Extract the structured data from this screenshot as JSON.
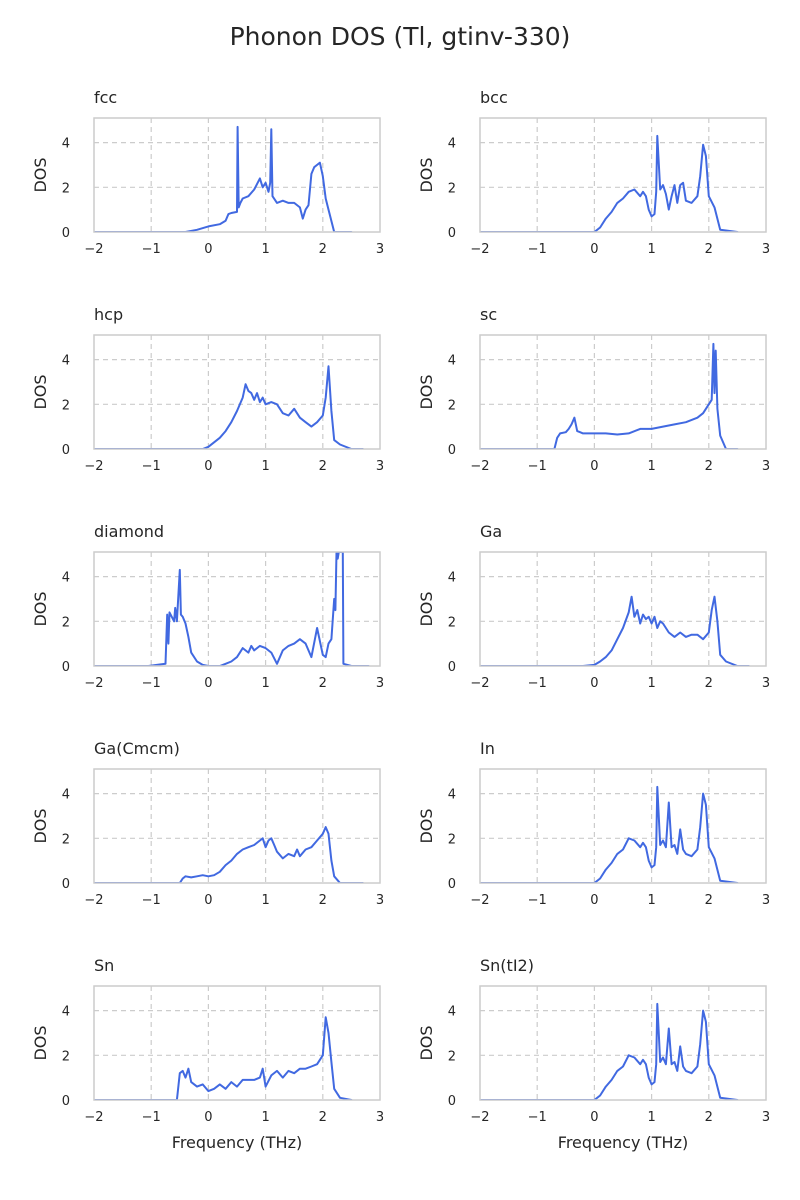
{
  "figure": {
    "title": "Phonon DOS (Tl, gtinv-330)"
  },
  "style": {
    "line_color": "#4169e1",
    "grid_color": "#cccccc",
    "frame_color": "#cccccc",
    "text_color": "#262626"
  },
  "chart_data": [
    {
      "type": "line",
      "title": "fcc",
      "xlabel": "",
      "ylabel": "DOS",
      "xlim": [
        -2,
        3
      ],
      "ylim": [
        0,
        5.1
      ],
      "xticks": [
        "−2",
        "−1",
        "0",
        "1",
        "2",
        "3"
      ],
      "yticks": [
        "0",
        "2",
        "4"
      ],
      "grid": true,
      "x": [
        -2,
        -0.4,
        -0.2,
        0,
        0.2,
        0.3,
        0.35,
        0.4,
        0.5,
        0.51,
        0.53,
        0.56,
        0.6,
        0.7,
        0.8,
        0.9,
        0.95,
        1.0,
        1.05,
        1.08,
        1.1,
        1.12,
        1.2,
        1.3,
        1.4,
        1.5,
        1.6,
        1.65,
        1.7,
        1.75,
        1.8,
        1.85,
        1.9,
        1.95,
        2.0,
        2.05,
        2.1,
        2.2,
        2.5
      ],
      "y": [
        0,
        0,
        0.1,
        0.25,
        0.35,
        0.5,
        0.8,
        0.85,
        0.9,
        4.7,
        1.1,
        1.3,
        1.5,
        1.6,
        1.9,
        2.4,
        2.0,
        2.2,
        1.8,
        2.2,
        4.6,
        1.6,
        1.3,
        1.4,
        1.3,
        1.3,
        1.1,
        0.6,
        1.0,
        1.2,
        2.6,
        2.9,
        3.0,
        3.1,
        2.5,
        1.5,
        1.0,
        0,
        0
      ]
    },
    {
      "type": "line",
      "title": "bcc",
      "xlabel": "",
      "ylabel": "DOS",
      "xlim": [
        -2,
        3
      ],
      "ylim": [
        0,
        5.1
      ],
      "xticks": [
        "−2",
        "−1",
        "0",
        "1",
        "2",
        "3"
      ],
      "yticks": [
        "0",
        "2",
        "4"
      ],
      "grid": true,
      "x": [
        -2,
        0,
        0.1,
        0.2,
        0.3,
        0.4,
        0.5,
        0.6,
        0.7,
        0.8,
        0.85,
        0.9,
        0.95,
        1.0,
        1.05,
        1.08,
        1.1,
        1.15,
        1.2,
        1.25,
        1.3,
        1.35,
        1.4,
        1.45,
        1.5,
        1.55,
        1.6,
        1.7,
        1.8,
        1.85,
        1.9,
        1.95,
        2.0,
        2.1,
        2.2,
        2.5
      ],
      "y": [
        0,
        0,
        0.2,
        0.6,
        0.9,
        1.3,
        1.5,
        1.8,
        1.9,
        1.6,
        1.8,
        1.6,
        1.0,
        0.7,
        0.8,
        1.8,
        4.3,
        1.9,
        2.1,
        1.7,
        1.0,
        1.6,
        2.1,
        1.3,
        2.1,
        2.2,
        1.4,
        1.3,
        1.6,
        2.5,
        3.9,
        3.4,
        1.6,
        1.1,
        0.1,
        0
      ]
    },
    {
      "type": "line",
      "title": "hcp",
      "xlabel": "",
      "ylabel": "DOS",
      "xlim": [
        -2,
        3
      ],
      "ylim": [
        0,
        5.1
      ],
      "xticks": [
        "−2",
        "−1",
        "0",
        "1",
        "2",
        "3"
      ],
      "yticks": [
        "0",
        "2",
        "4"
      ],
      "grid": true,
      "x": [
        -2,
        -0.1,
        0,
        0.1,
        0.2,
        0.3,
        0.4,
        0.5,
        0.6,
        0.65,
        0.7,
        0.75,
        0.8,
        0.85,
        0.9,
        0.95,
        1.0,
        1.1,
        1.2,
        1.3,
        1.4,
        1.5,
        1.6,
        1.7,
        1.8,
        1.9,
        2.0,
        2.05,
        2.1,
        2.15,
        2.2,
        2.3,
        2.5,
        2.7
      ],
      "y": [
        0,
        0,
        0.1,
        0.3,
        0.5,
        0.8,
        1.2,
        1.7,
        2.3,
        2.9,
        2.6,
        2.5,
        2.2,
        2.5,
        2.1,
        2.3,
        2.0,
        2.1,
        2.0,
        1.6,
        1.5,
        1.8,
        1.4,
        1.2,
        1.0,
        1.2,
        1.5,
        2.3,
        3.7,
        1.7,
        0.4,
        0.2,
        0,
        0
      ]
    },
    {
      "type": "line",
      "title": "sc",
      "xlabel": "",
      "ylabel": "DOS",
      "xlim": [
        -2,
        3
      ],
      "ylim": [
        0,
        5.1
      ],
      "xticks": [
        "−2",
        "−1",
        "0",
        "1",
        "2",
        "3"
      ],
      "yticks": [
        "0",
        "2",
        "4"
      ],
      "grid": true,
      "x": [
        -2,
        -0.7,
        -0.65,
        -0.6,
        -0.5,
        -0.45,
        -0.4,
        -0.35,
        -0.3,
        -0.25,
        -0.2,
        -0.1,
        0,
        0.2,
        0.4,
        0.6,
        0.8,
        1.0,
        1.2,
        1.4,
        1.6,
        1.8,
        1.9,
        2.0,
        2.05,
        2.08,
        2.1,
        2.12,
        2.15,
        2.2,
        2.3,
        2.5
      ],
      "y": [
        0,
        0,
        0.5,
        0.7,
        0.75,
        0.9,
        1.1,
        1.4,
        0.8,
        0.75,
        0.7,
        0.7,
        0.7,
        0.7,
        0.65,
        0.7,
        0.9,
        0.9,
        1.0,
        1.1,
        1.2,
        1.4,
        1.6,
        2.0,
        2.2,
        4.7,
        2.5,
        4.4,
        1.8,
        0.6,
        0,
        0
      ]
    },
    {
      "type": "line",
      "title": "diamond",
      "xlabel": "",
      "ylabel": "DOS",
      "xlim": [
        -2,
        3
      ],
      "ylim": [
        0,
        5.1
      ],
      "xticks": [
        "−2",
        "−1",
        "0",
        "1",
        "2",
        "3"
      ],
      "yticks": [
        "0",
        "2",
        "4"
      ],
      "grid": true,
      "x": [
        -2,
        -1.05,
        -0.75,
        -0.72,
        -0.7,
        -0.68,
        -0.6,
        -0.58,
        -0.55,
        -0.5,
        -0.48,
        -0.45,
        -0.4,
        -0.35,
        -0.3,
        -0.2,
        -0.1,
        0,
        0.2,
        0.3,
        0.4,
        0.5,
        0.55,
        0.6,
        0.7,
        0.75,
        0.8,
        0.9,
        1.0,
        1.1,
        1.2,
        1.3,
        1.4,
        1.5,
        1.6,
        1.7,
        1.8,
        1.9,
        2.0,
        2.05,
        2.1,
        2.15,
        2.2,
        2.22,
        2.24,
        2.26,
        2.28,
        2.3,
        2.35,
        2.36,
        2.5,
        2.8
      ],
      "y": [
        0,
        0,
        0.1,
        2.3,
        1.0,
        2.4,
        2.0,
        2.6,
        2.0,
        4.3,
        2.3,
        2.2,
        1.9,
        1.3,
        0.6,
        0.2,
        0.05,
        0,
        0,
        0.1,
        0.2,
        0.4,
        0.6,
        0.8,
        0.6,
        0.9,
        0.7,
        0.9,
        0.8,
        0.6,
        0.1,
        0.7,
        0.9,
        1.0,
        1.2,
        1.0,
        0.4,
        1.7,
        0.5,
        0.4,
        1.0,
        1.2,
        3.0,
        2.5,
        5.1,
        4.8,
        5.1,
        5.1,
        5.1,
        0.1,
        0,
        0
      ]
    },
    {
      "type": "line",
      "title": "Ga",
      "xlabel": "",
      "ylabel": "DOS",
      "xlim": [
        -2,
        3
      ],
      "ylim": [
        0,
        5.1
      ],
      "xticks": [
        "−2",
        "−1",
        "0",
        "1",
        "2",
        "3"
      ],
      "yticks": [
        "0",
        "2",
        "4"
      ],
      "grid": true,
      "x": [
        -2,
        -0.2,
        0,
        0.1,
        0.2,
        0.3,
        0.4,
        0.5,
        0.6,
        0.65,
        0.7,
        0.75,
        0.8,
        0.85,
        0.9,
        0.95,
        1.0,
        1.05,
        1.1,
        1.15,
        1.2,
        1.3,
        1.4,
        1.5,
        1.6,
        1.7,
        1.8,
        1.9,
        2.0,
        2.05,
        2.1,
        2.15,
        2.2,
        2.3,
        2.5,
        2.7
      ],
      "y": [
        0,
        0,
        0.05,
        0.2,
        0.4,
        0.7,
        1.2,
        1.7,
        2.4,
        3.1,
        2.2,
        2.5,
        1.9,
        2.3,
        2.1,
        2.2,
        1.9,
        2.2,
        1.7,
        2.0,
        1.9,
        1.5,
        1.3,
        1.5,
        1.3,
        1.4,
        1.4,
        1.2,
        1.5,
        2.5,
        3.1,
        2.0,
        0.5,
        0.2,
        0,
        0
      ]
    },
    {
      "type": "line",
      "title": "Ga(Cmcm)",
      "xlabel": "",
      "ylabel": "DOS",
      "xlim": [
        -2,
        3
      ],
      "ylim": [
        0,
        5.1
      ],
      "xticks": [
        "−2",
        "−1",
        "0",
        "1",
        "2",
        "3"
      ],
      "yticks": [
        "0",
        "2",
        "4"
      ],
      "grid": true,
      "x": [
        -2,
        -0.5,
        -0.45,
        -0.4,
        -0.3,
        -0.2,
        -0.1,
        0,
        0.1,
        0.2,
        0.3,
        0.4,
        0.5,
        0.6,
        0.7,
        0.8,
        0.9,
        0.95,
        1.0,
        1.05,
        1.1,
        1.15,
        1.2,
        1.3,
        1.4,
        1.5,
        1.55,
        1.6,
        1.7,
        1.8,
        1.9,
        2.0,
        2.05,
        2.1,
        2.15,
        2.2,
        2.3,
        2.5,
        2.7
      ],
      "y": [
        0,
        0,
        0.2,
        0.3,
        0.25,
        0.3,
        0.35,
        0.3,
        0.35,
        0.5,
        0.8,
        1.0,
        1.3,
        1.5,
        1.6,
        1.7,
        1.9,
        2.0,
        1.6,
        1.9,
        2.0,
        1.7,
        1.4,
        1.1,
        1.3,
        1.2,
        1.5,
        1.2,
        1.5,
        1.6,
        1.9,
        2.2,
        2.5,
        2.2,
        1.0,
        0.3,
        0,
        0,
        0
      ]
    },
    {
      "type": "line",
      "title": "In",
      "xlabel": "",
      "ylabel": "DOS",
      "xlim": [
        -2,
        3
      ],
      "ylim": [
        0,
        5.1
      ],
      "xticks": [
        "−2",
        "−1",
        "0",
        "1",
        "2",
        "3"
      ],
      "yticks": [
        "0",
        "2",
        "4"
      ],
      "grid": true,
      "x": [
        -2,
        0,
        0.1,
        0.2,
        0.3,
        0.4,
        0.5,
        0.6,
        0.7,
        0.8,
        0.85,
        0.9,
        0.95,
        1.0,
        1.05,
        1.08,
        1.1,
        1.15,
        1.2,
        1.25,
        1.3,
        1.35,
        1.4,
        1.45,
        1.5,
        1.55,
        1.6,
        1.7,
        1.8,
        1.85,
        1.9,
        1.95,
        2.0,
        2.1,
        2.2,
        2.5
      ],
      "y": [
        0,
        0,
        0.2,
        0.6,
        0.9,
        1.3,
        1.5,
        2.0,
        1.9,
        1.6,
        1.8,
        1.6,
        1.0,
        0.7,
        0.8,
        1.6,
        4.3,
        1.7,
        1.9,
        1.6,
        3.6,
        1.6,
        1.7,
        1.3,
        2.4,
        1.5,
        1.3,
        1.2,
        1.5,
        2.5,
        4.0,
        3.5,
        1.6,
        1.1,
        0.1,
        0
      ]
    },
    {
      "type": "line",
      "title": "Sn",
      "xlabel": "Frequency (THz)",
      "ylabel": "DOS",
      "xlim": [
        -2,
        3
      ],
      "ylim": [
        0,
        5.1
      ],
      "xticks": [
        "−2",
        "−1",
        "0",
        "1",
        "2",
        "3"
      ],
      "yticks": [
        "0",
        "2",
        "4"
      ],
      "grid": true,
      "x": [
        -2,
        -0.55,
        -0.5,
        -0.45,
        -0.4,
        -0.35,
        -0.3,
        -0.2,
        -0.1,
        0,
        0.1,
        0.2,
        0.3,
        0.4,
        0.5,
        0.6,
        0.7,
        0.8,
        0.9,
        0.95,
        1.0,
        1.1,
        1.2,
        1.3,
        1.4,
        1.5,
        1.6,
        1.7,
        1.8,
        1.9,
        2.0,
        2.05,
        2.1,
        2.15,
        2.2,
        2.3,
        2.5
      ],
      "y": [
        0,
        0,
        1.2,
        1.3,
        1.0,
        1.4,
        0.8,
        0.6,
        0.7,
        0.4,
        0.5,
        0.7,
        0.5,
        0.8,
        0.6,
        0.9,
        0.9,
        0.9,
        1.0,
        1.4,
        0.6,
        1.1,
        1.3,
        1.0,
        1.3,
        1.2,
        1.4,
        1.4,
        1.5,
        1.6,
        2.0,
        3.7,
        3.0,
        1.7,
        0.5,
        0.1,
        0
      ]
    },
    {
      "type": "line",
      "title": "Sn(tI2)",
      "xlabel": "Frequency (THz)",
      "ylabel": "DOS",
      "xlim": [
        -2,
        3
      ],
      "ylim": [
        0,
        5.1
      ],
      "xticks": [
        "−2",
        "−1",
        "0",
        "1",
        "2",
        "3"
      ],
      "yticks": [
        "0",
        "2",
        "4"
      ],
      "grid": true,
      "x": [
        -2,
        0,
        0.1,
        0.2,
        0.3,
        0.4,
        0.5,
        0.6,
        0.7,
        0.8,
        0.85,
        0.9,
        0.95,
        1.0,
        1.05,
        1.08,
        1.1,
        1.15,
        1.2,
        1.25,
        1.3,
        1.35,
        1.4,
        1.45,
        1.5,
        1.55,
        1.6,
        1.7,
        1.8,
        1.85,
        1.9,
        1.95,
        2.0,
        2.1,
        2.2,
        2.5
      ],
      "y": [
        0,
        0,
        0.2,
        0.6,
        0.9,
        1.3,
        1.5,
        2.0,
        1.9,
        1.6,
        1.8,
        1.6,
        1.0,
        0.7,
        0.8,
        1.6,
        4.3,
        1.7,
        1.9,
        1.6,
        3.2,
        1.6,
        1.7,
        1.3,
        2.4,
        1.5,
        1.3,
        1.2,
        1.5,
        2.5,
        4.0,
        3.5,
        1.6,
        1.1,
        0.1,
        0
      ]
    }
  ]
}
